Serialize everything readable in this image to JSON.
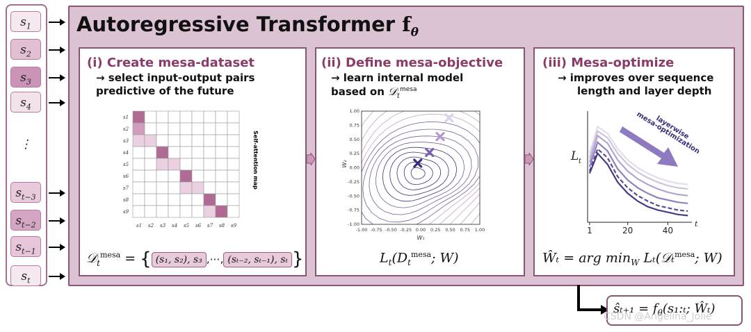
{
  "title": "Autoregressive Transformer",
  "title_symbol": "f",
  "title_symbol_sub": "θ",
  "tokens": [
    {
      "base": "s",
      "sub": "1"
    },
    {
      "base": "s",
      "sub": "2"
    },
    {
      "base": "s",
      "sub": "3"
    },
    {
      "base": "s",
      "sub": "4"
    },
    {
      "base": "⋮",
      "sub": ""
    },
    {
      "base": "s",
      "sub": "t−3"
    },
    {
      "base": "s",
      "sub": "t−2"
    },
    {
      "base": "s",
      "sub": "t−1"
    },
    {
      "base": "s",
      "sub": "t"
    }
  ],
  "panel1": {
    "title": "(i) Create mesa-dataset",
    "subtitle_line1": "→ select input-output pairs",
    "subtitle_line2": "predictive of the future",
    "heatmap_label": "Self-attention map",
    "row_labels": [
      "s1",
      "s2",
      "s3",
      "s4",
      "s5",
      "s6",
      "s7",
      "s8",
      "s9"
    ],
    "col_labels": [
      "s1",
      "s2",
      "s3",
      "s4",
      "s5",
      "s6",
      "s7",
      "s8",
      "s9"
    ],
    "formula_lhs": "𝒟",
    "formula_lhs_sub": "t",
    "formula_lhs_sup": "mesa",
    "formula_eq": "=",
    "pair1": "(s₁, s₂), s₃",
    "ellipsis": ",⋯,",
    "pair2": "(sₜ₋₂, sₜ₋₁), sₜ"
  },
  "panel2": {
    "title": "(ii) Define mesa-objective",
    "subtitle_line1": "→ learn internal model",
    "subtitle_line2": "based on",
    "subtitle_math": "𝒟",
    "subtitle_math_sub": "t",
    "subtitle_math_sup": "mesa",
    "xlabel": "W₁",
    "ylabel": "W₂",
    "formula_main": "L",
    "formula_sub": "t",
    "formula_arg": "(D",
    "formula_arg_sup": "mesa",
    "formula_arg_sub": "t",
    "formula_tail": "; W)"
  },
  "panel3": {
    "title": "(iii) Mesa-optimize",
    "subtitle_line1": "→ improves over sequence",
    "subtitle_line2": "length and layer depth",
    "ylabel": "L",
    "ylabel_sub": "t",
    "xlabel": "t",
    "annotation_line1": "layerwise",
    "annotation_line2": "mesa-optimization",
    "formula": "Ŵₜ = arg min",
    "formula_sub": "W",
    "formula_rest": "Lₜ(𝒟ₜ",
    "formula_rest_sup": "mesa",
    "formula_end": "; W)"
  },
  "output_formula": "ŝₜ₊₁ = f",
  "output_formula_sub": "θ",
  "output_formula_rest": "(s₁:ₜ; Ŵₜ)",
  "watermark": "CSDN @Angelina_Jolie",
  "colors": {
    "frame": "#8a5476",
    "frame_fill": "#dcc3d3",
    "accent": "#8a3c68",
    "line_dark": "#5a4a96",
    "cell_dark": "#b06b95",
    "cell_light": "#ead0e0"
  },
  "chart_data": [
    {
      "type": "heatmap",
      "row_labels": [
        "s1",
        "s2",
        "s3",
        "s4",
        "s5",
        "s6",
        "s7",
        "s8",
        "s9"
      ],
      "col_labels": [
        "s1",
        "s2",
        "s3",
        "s4",
        "s5",
        "s6",
        "s7",
        "s8",
        "s9"
      ],
      "cells": [
        {
          "row": 1,
          "col": 1,
          "level": "dark"
        },
        {
          "row": 2,
          "col": 1,
          "level": "medium"
        },
        {
          "row": 3,
          "col": 1,
          "level": "light"
        },
        {
          "row": 3,
          "col": 2,
          "level": "light"
        },
        {
          "row": 4,
          "col": 3,
          "level": "dark"
        },
        {
          "row": 5,
          "col": 3,
          "level": "light"
        },
        {
          "row": 5,
          "col": 4,
          "level": "light"
        },
        {
          "row": 6,
          "col": 5,
          "level": "dark"
        },
        {
          "row": 7,
          "col": 5,
          "level": "light"
        },
        {
          "row": 7,
          "col": 6,
          "level": "light"
        },
        {
          "row": 8,
          "col": 7,
          "level": "dark"
        },
        {
          "row": 9,
          "col": 7,
          "level": "light"
        },
        {
          "row": 9,
          "col": 8,
          "level": "dark"
        }
      ]
    },
    {
      "type": "contour",
      "xlim": [
        -1.0,
        1.0
      ],
      "ylim": [
        -1.0,
        1.0
      ],
      "xticks": [
        "-1.00",
        "-0.75",
        "-0.50",
        "-0.25",
        "0.00",
        "0.25",
        "0.50",
        "0.75",
        "1.00"
      ],
      "yticks": [
        "1.00",
        "0.75",
        "0.50",
        "0.25",
        "0.00",
        "-0.25",
        "-0.50",
        "-0.75",
        "-1.00"
      ],
      "markers": [
        {
          "x": -0.05,
          "y": 0.08,
          "shade": "dark"
        },
        {
          "x": 0.15,
          "y": 0.27,
          "shade": "medium"
        },
        {
          "x": 0.33,
          "y": 0.55,
          "shade": "light"
        },
        {
          "x": 0.48,
          "y": 0.88,
          "shade": "lightest"
        }
      ]
    },
    {
      "type": "line",
      "x": [
        1,
        5,
        10,
        15,
        20,
        25,
        30,
        35,
        40,
        45,
        50
      ],
      "xticks": [
        "1",
        "20",
        "40"
      ],
      "xlim": [
        0,
        52
      ],
      "ylim": [
        0,
        1
      ],
      "series": [
        {
          "values": [
            0.62,
            0.86,
            0.8,
            0.66,
            0.56,
            0.49,
            0.44,
            0.4,
            0.37,
            0.35,
            0.34
          ],
          "shade": "#e4dcec",
          "dashed": false
        },
        {
          "values": [
            0.58,
            0.82,
            0.76,
            0.62,
            0.52,
            0.45,
            0.4,
            0.36,
            0.33,
            0.31,
            0.3
          ],
          "shade": "#cfc3e0",
          "dashed": false
        },
        {
          "values": [
            0.54,
            0.78,
            0.71,
            0.56,
            0.46,
            0.39,
            0.34,
            0.3,
            0.27,
            0.25,
            0.24
          ],
          "shade": "#b3a5d1",
          "dashed": false
        },
        {
          "values": [
            0.5,
            0.72,
            0.64,
            0.48,
            0.38,
            0.31,
            0.26,
            0.22,
            0.2,
            0.18,
            0.17
          ],
          "shade": "#8f7fbd",
          "dashed": false
        },
        {
          "values": [
            0.46,
            0.66,
            0.58,
            0.41,
            0.31,
            0.24,
            0.19,
            0.15,
            0.13,
            0.11,
            0.1
          ],
          "shade": "#5a4a96",
          "dashed": true
        },
        {
          "values": [
            0.44,
            0.62,
            0.52,
            0.36,
            0.26,
            0.19,
            0.14,
            0.11,
            0.09,
            0.07,
            0.06
          ],
          "shade": "#4a3a86",
          "dashed": false
        }
      ]
    }
  ]
}
